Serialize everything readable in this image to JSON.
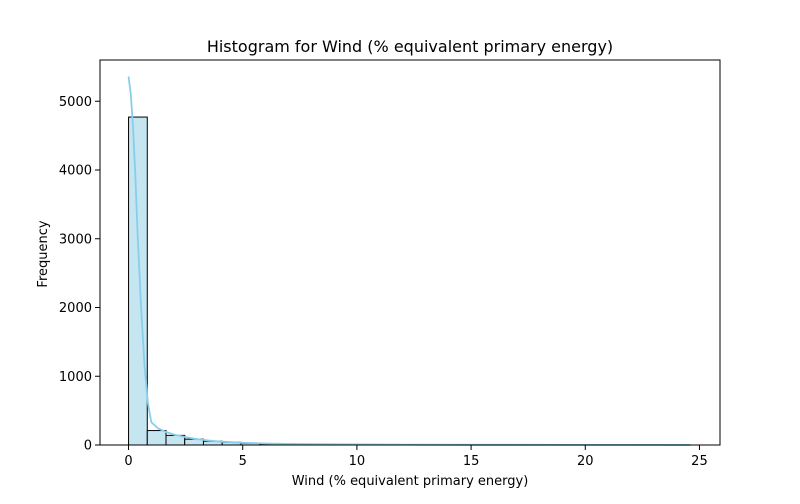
{
  "chart_data": {
    "type": "bar",
    "subtype": "histogram-with-kde",
    "title": "Histogram for Wind (% equivalent primary energy)",
    "xlabel": "Wind (% equivalent primary energy)",
    "ylabel": "Frequency",
    "xlim": [
      -1.25,
      25.9
    ],
    "ylim": [
      0,
      5600
    ],
    "x_ticks": [
      0,
      5,
      10,
      15,
      20,
      25
    ],
    "y_ticks": [
      0,
      1000,
      2000,
      3000,
      4000,
      5000
    ],
    "grid": false,
    "legend": "none",
    "bar_fill": "#c5e5f1",
    "bar_edge": "#000000",
    "kde_color": "#87ceeb",
    "bins": {
      "edges": [
        0.0,
        0.82,
        1.64,
        2.46,
        3.28,
        4.1,
        4.92,
        5.74,
        6.56,
        7.38,
        8.2,
        9.02,
        9.84,
        10.66,
        11.48,
        12.3,
        13.12,
        13.94,
        14.76,
        15.58,
        16.4,
        17.22,
        18.04,
        18.86,
        19.68,
        20.5,
        21.32,
        22.14,
        22.96,
        23.78,
        24.6
      ],
      "counts": [
        4770,
        210,
        140,
        85,
        55,
        40,
        25,
        15,
        10,
        8,
        6,
        5,
        4,
        3,
        3,
        2,
        2,
        2,
        1,
        1,
        1,
        1,
        1,
        1,
        1,
        0,
        1,
        0,
        0,
        1
      ]
    },
    "kde": {
      "x": [
        0.0,
        0.1,
        0.2,
        0.3,
        0.4,
        0.55,
        0.7,
        0.85,
        1.0,
        1.3,
        1.6,
        2.0,
        2.5,
        3.0,
        3.5,
        4.0,
        5.0,
        6.0,
        7.0,
        8.0,
        10.0,
        12.0,
        15.0,
        20.0,
        24.6
      ],
      "y": [
        5360,
        5100,
        4600,
        3900,
        3050,
        2000,
        1150,
        600,
        330,
        240,
        195,
        150,
        115,
        85,
        65,
        50,
        32,
        22,
        16,
        12,
        8,
        6,
        3,
        2,
        1
      ]
    }
  }
}
